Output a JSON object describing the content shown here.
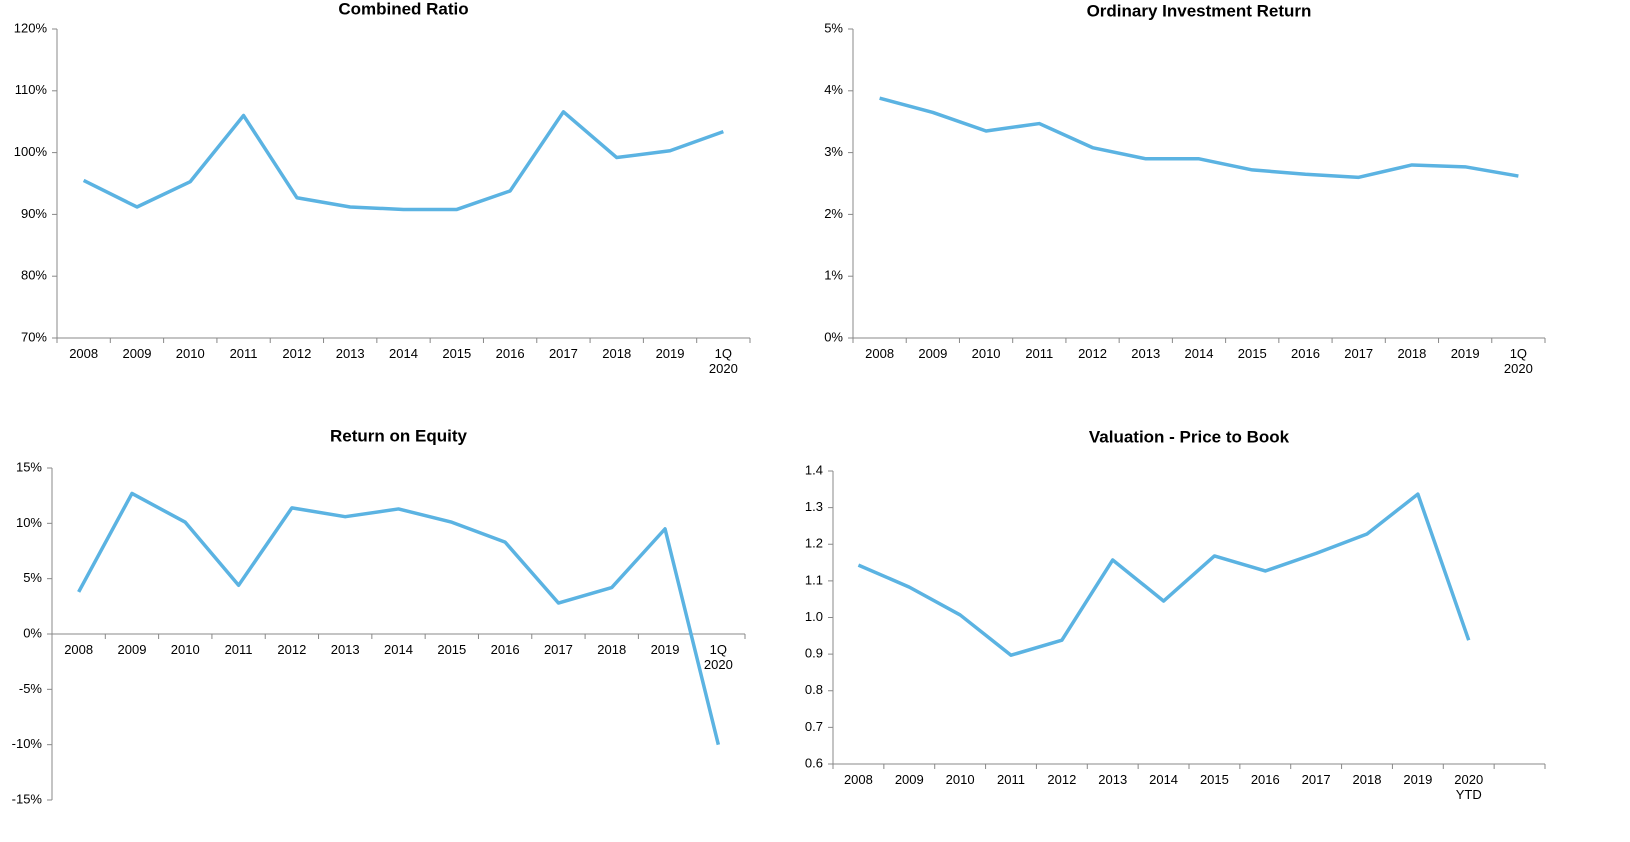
{
  "chart_data": [
    {
      "type": "line",
      "title": "Combined Ratio",
      "categories": [
        "2008",
        "2009",
        "2010",
        "2011",
        "2012",
        "2013",
        "2014",
        "2015",
        "2016",
        "2017",
        "2018",
        "2019",
        "1Q\n2020"
      ],
      "series": [
        {
          "color": "#5bb3e2",
          "values": [
            95.5,
            91.2,
            95.3,
            106,
            92.7,
            91.2,
            90.8,
            90.8,
            93.8,
            106.6,
            99.2,
            100.3,
            103.4
          ]
        }
      ],
      "ylim": [
        70,
        120
      ],
      "yticks": [
        {
          "value": 70,
          "label": "70%"
        },
        {
          "value": 80,
          "label": "80%"
        },
        {
          "value": 90,
          "label": "90%"
        },
        {
          "value": 100,
          "label": "100%"
        },
        {
          "value": 110,
          "label": "110%"
        },
        {
          "value": 120,
          "label": "120%"
        }
      ]
    },
    {
      "type": "line",
      "title": "Ordinary Investment Return",
      "categories": [
        "2008",
        "2009",
        "2010",
        "2011",
        "2012",
        "2013",
        "2014",
        "2015",
        "2016",
        "2017",
        "2018",
        "2019",
        "1Q\n2020"
      ],
      "series": [
        {
          "color": "#5bb3e2",
          "values": [
            3.88,
            3.65,
            3.35,
            3.47,
            3.08,
            2.9,
            2.9,
            2.72,
            2.65,
            2.6,
            2.8,
            2.77,
            2.62
          ]
        }
      ],
      "ylim": [
        0,
        5
      ],
      "yticks": [
        {
          "value": 0,
          "label": "0%"
        },
        {
          "value": 1,
          "label": "1%"
        },
        {
          "value": 2,
          "label": "2%"
        },
        {
          "value": 3,
          "label": "3%"
        },
        {
          "value": 4,
          "label": "4%"
        },
        {
          "value": 5,
          "label": "5%"
        }
      ]
    },
    {
      "type": "line",
      "title": "Return on Equity",
      "categories": [
        "2008",
        "2009",
        "2010",
        "2011",
        "2012",
        "2013",
        "2014",
        "2015",
        "2016",
        "2017",
        "2018",
        "2019",
        "1Q\n2020"
      ],
      "series": [
        {
          "color": "#5bb3e2",
          "values": [
            3.8,
            12.7,
            10.1,
            4.4,
            11.4,
            10.6,
            11.3,
            10.1,
            8.3,
            2.8,
            4.2,
            9.5,
            -10
          ]
        }
      ],
      "ylim": [
        -15,
        15
      ],
      "yticks": [
        {
          "value": -15,
          "label": "-15%"
        },
        {
          "value": -10,
          "label": "-10%"
        },
        {
          "value": -5,
          "label": "-5%"
        },
        {
          "value": 0,
          "label": "0%"
        },
        {
          "value": 5,
          "label": "5%"
        },
        {
          "value": 10,
          "label": "10%"
        },
        {
          "value": 15,
          "label": "15%"
        }
      ]
    },
    {
      "type": "line",
      "title": "Valuation - Price to Book",
      "categories": [
        "2008",
        "2009",
        "2010",
        "2011",
        "2012",
        "2013",
        "2014",
        "2015",
        "2016",
        "2017",
        "2018",
        "2019",
        "2020\nYTD",
        null
      ],
      "series": [
        {
          "color": "#5bb3e2",
          "values": [
            1.143,
            1.083,
            1.007,
            0.897,
            0.938,
            1.157,
            1.045,
            1.168,
            1.127,
            1.175,
            1.228,
            1.337,
            0.938,
            null
          ]
        }
      ],
      "ylim": [
        0.6,
        1.4
      ],
      "yticks": [
        0.6,
        0.7,
        0.8,
        0.9,
        {
          "value": 1,
          "label": "1.0"
        },
        1.1,
        1.2,
        1.3,
        1.4
      ]
    }
  ]
}
